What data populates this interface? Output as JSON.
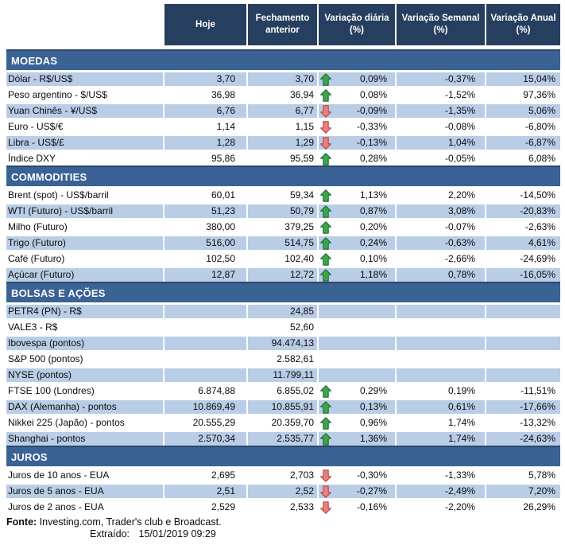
{
  "table": {
    "columns": [
      "Hoje",
      "Fechamento anterior",
      "Variação diária (%)",
      "Variação Semanal (%)",
      "Variação Anual (%)"
    ]
  },
  "colors": {
    "header_bg": "#263F5E",
    "section_bg": "#3A6295",
    "band_bg": "#B9CDE6",
    "arrow_up_fill": "#3FA648",
    "arrow_up_stroke": "#1E6B3C",
    "arrow_down_fill": "#E9807E",
    "arrow_down_stroke": "#B94743"
  },
  "sections": [
    {
      "title": "MOEDAS",
      "band_start": "blue",
      "rows": [
        {
          "label": "Dólar - R$/US$",
          "hoje": "3,70",
          "fech": "3,70",
          "arrow": "up",
          "daily": "0,09%",
          "weekly": "-0,37%",
          "annual": "15,04%"
        },
        {
          "label": "Peso argentino - $/US$",
          "hoje": "36,98",
          "fech": "36,94",
          "arrow": "up",
          "daily": "0,08%",
          "weekly": "-1,52%",
          "annual": "97,36%"
        },
        {
          "label": "Yuan Chinês - ¥/US$",
          "hoje": "6,76",
          "fech": "6,77",
          "arrow": "down",
          "daily": "-0,09%",
          "weekly": "-1,35%",
          "annual": "5,06%"
        },
        {
          "label": "Euro - US$/€",
          "hoje": "1,14",
          "fech": "1,15",
          "arrow": "down",
          "daily": "-0,33%",
          "weekly": "-0,08%",
          "annual": "-6,80%"
        },
        {
          "label": "Libra - US$/£",
          "hoje": "1,28",
          "fech": "1,29",
          "arrow": "down",
          "daily": "-0,13%",
          "weekly": "1,04%",
          "annual": "-6,87%"
        },
        {
          "label": "Índice DXY",
          "hoje": "95,86",
          "fech": "95,59",
          "arrow": "up",
          "daily": "0,28%",
          "weekly": "-0,05%",
          "annual": "6,08%"
        }
      ]
    },
    {
      "title": "COMMODITIES",
      "band_start": "white",
      "rows": [
        {
          "label": "Brent (spot) - US$/barril",
          "hoje": "60,01",
          "fech": "59,34",
          "arrow": "up",
          "daily": "1,13%",
          "weekly": "2,20%",
          "annual": "-14,50%"
        },
        {
          "label": "WTI (Futuro) - US$/barril",
          "hoje": "51,23",
          "fech": "50,79",
          "arrow": "up",
          "daily": "0,87%",
          "weekly": "3,08%",
          "annual": "-20,83%"
        },
        {
          "label": "Milho (Futuro)",
          "hoje": "380,00",
          "fech": "379,25",
          "arrow": "up",
          "daily": "0,20%",
          "weekly": "-0,07%",
          "annual": "-2,63%"
        },
        {
          "label": "Trigo (Futuro)",
          "hoje": "516,00",
          "fech": "514,75",
          "arrow": "up",
          "daily": "0,24%",
          "weekly": "-0,63%",
          "annual": "4,61%"
        },
        {
          "label": "Café (Futuro)",
          "hoje": "102,50",
          "fech": "102,40",
          "arrow": "up",
          "daily": "0,10%",
          "weekly": "-2,66%",
          "annual": "-24,69%"
        },
        {
          "label": "Açúcar (Futuro)",
          "hoje": "12,87",
          "fech": "12,72",
          "arrow": "up",
          "daily": "1,18%",
          "weekly": "0,78%",
          "annual": "-16,05%"
        }
      ]
    },
    {
      "title": "BOLSAS E AÇÕES",
      "band_start": "blue",
      "rows": [
        {
          "label": "PETR4 (PN) - R$",
          "hoje": "",
          "fech": "24,85",
          "arrow": "",
          "daily": "",
          "weekly": "",
          "annual": ""
        },
        {
          "label": "VALE3 - R$",
          "hoje": "",
          "fech": "52,60",
          "arrow": "",
          "daily": "",
          "weekly": "",
          "annual": ""
        },
        {
          "label": "Ibovespa (pontos)",
          "hoje": "",
          "fech": "94.474,13",
          "arrow": "",
          "daily": "",
          "weekly": "",
          "annual": ""
        },
        {
          "label": "S&P 500 (pontos)",
          "hoje": "",
          "fech": "2.582,61",
          "arrow": "",
          "daily": "",
          "weekly": "",
          "annual": ""
        },
        {
          "label": "NYSE (pontos)",
          "hoje": "",
          "fech": "11.799,11",
          "arrow": "",
          "daily": "",
          "weekly": "",
          "annual": ""
        },
        {
          "label": "FTSE 100 (Londres)",
          "hoje": "6.874,88",
          "fech": "6.855,02",
          "arrow": "up",
          "daily": "0,29%",
          "weekly": "0,19%",
          "annual": "-11,51%"
        },
        {
          "label": "DAX (Alemanha) - pontos",
          "hoje": "10.869,49",
          "fech": "10.855,91",
          "arrow": "up",
          "daily": "0,13%",
          "weekly": "0,61%",
          "annual": "-17,66%"
        },
        {
          "label": "Nikkei 225 (Japão) - pontos",
          "hoje": "20.555,29",
          "fech": "20.359,70",
          "arrow": "up",
          "daily": "0,96%",
          "weekly": "1,74%",
          "annual": "-13,32%"
        },
        {
          "label": "Shanghai - pontos",
          "hoje": "2.570,34",
          "fech": "2.535,77",
          "arrow": "up",
          "daily": "1,36%",
          "weekly": "1,74%",
          "annual": "-24,63%"
        }
      ]
    },
    {
      "title": "JUROS",
      "band_start": "white",
      "rows": [
        {
          "label": "Juros de 10 anos - EUA",
          "hoje": "2,695",
          "fech": "2,703",
          "arrow": "down",
          "daily": "-0,30%",
          "weekly": "-1,33%",
          "annual": "5,78%"
        },
        {
          "label": "Juros de 5 anos - EUA",
          "hoje": "2,51",
          "fech": "2,52",
          "arrow": "down",
          "daily": "-0,27%",
          "weekly": "-2,49%",
          "annual": "7,20%"
        },
        {
          "label": "Juros de 2 anos - EUA",
          "hoje": "2,529",
          "fech": "2,533",
          "arrow": "down",
          "daily": "-0,16%",
          "weekly": "-2,20%",
          "annual": "26,29%"
        }
      ]
    }
  ],
  "footer": {
    "source_label": "Fonte:",
    "source_text": "Investing.com, Trader's club e Broadcast.",
    "extracted_label": "Extraído:",
    "extracted_value": "15/01/2019 09:29"
  }
}
